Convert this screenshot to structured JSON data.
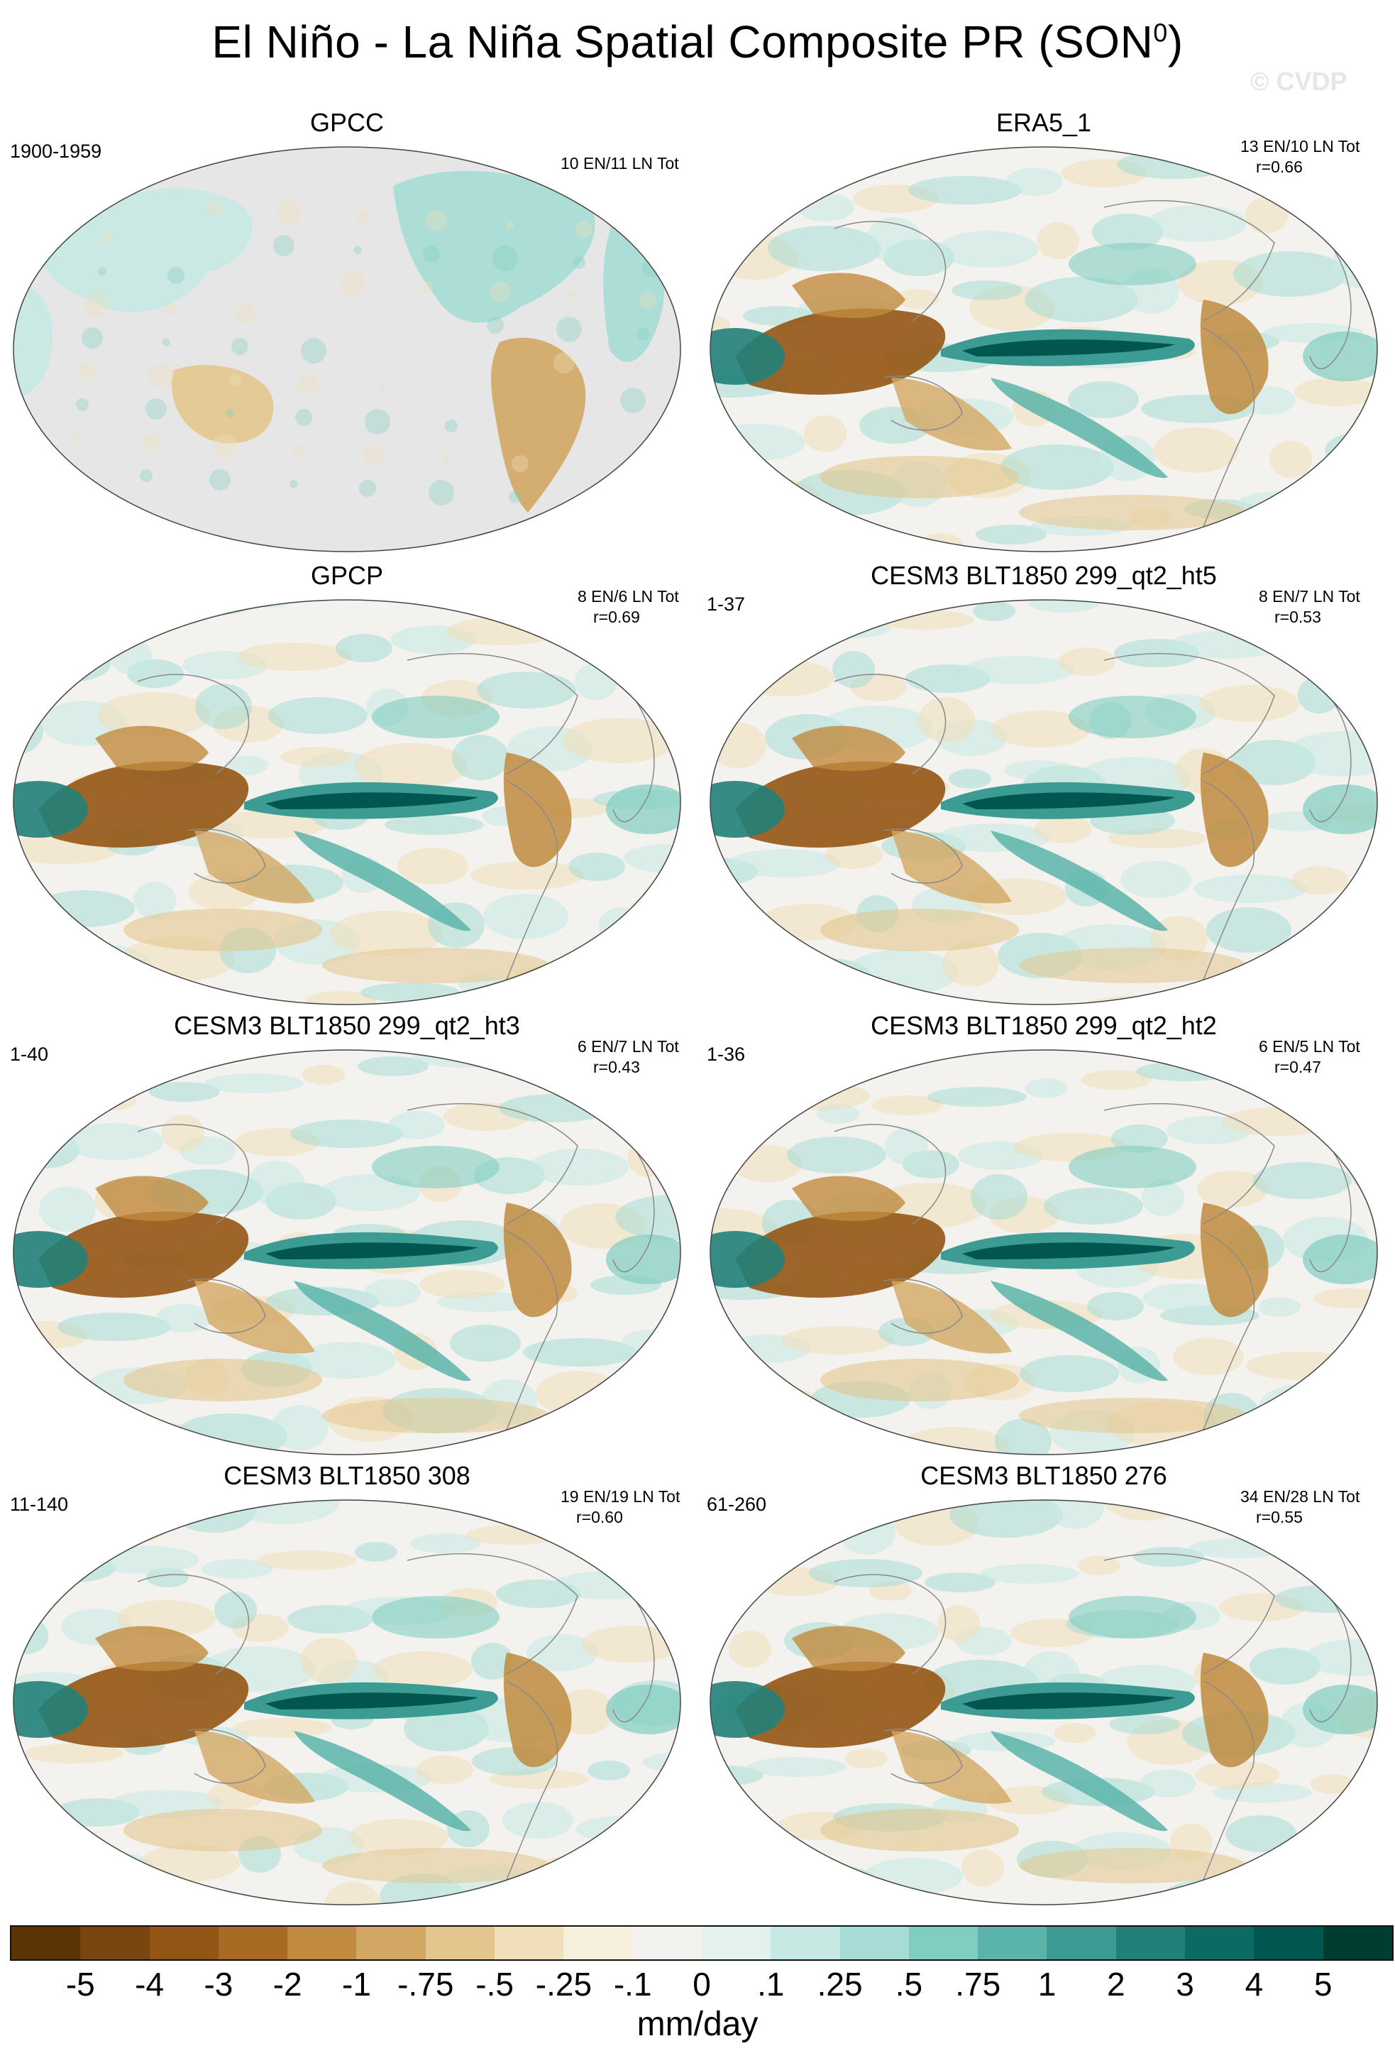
{
  "title": "El Niño - La Niña Spatial Composite PR (SON",
  "title_sup": "0",
  "title_end": ")",
  "watermark": "© CVDP",
  "panels": [
    {
      "title": "GPCC",
      "years": "1900-1959",
      "stats1": "10 EN/11 LN Tot",
      "stats2": "",
      "kind": "land"
    },
    {
      "title": "ERA5_1",
      "years": "",
      "stats1": "13 EN/10 LN Tot",
      "stats2": "r=0.66",
      "kind": "full"
    },
    {
      "title": "GPCP",
      "years": "",
      "stats1": "8 EN/6 LN Tot",
      "stats2": "r=0.69",
      "kind": "full"
    },
    {
      "title": "CESM3 BLT1850 299_qt2_ht5",
      "years": "1-37",
      "stats1": "8 EN/7 LN Tot",
      "stats2": "r=0.53",
      "kind": "full"
    },
    {
      "title": "CESM3 BLT1850 299_qt2_ht3",
      "years": "1-40",
      "stats1": "6 EN/7 LN Tot",
      "stats2": "r=0.43",
      "kind": "full"
    },
    {
      "title": "CESM3 BLT1850 299_qt2_ht2",
      "years": "1-36",
      "stats1": "6 EN/5 LN Tot",
      "stats2": "r=0.47",
      "kind": "full"
    },
    {
      "title": "CESM3 BLT1850 308",
      "years": "11-140",
      "stats1": "19 EN/19 LN Tot",
      "stats2": "r=0.60",
      "kind": "full"
    },
    {
      "title": "CESM3 BLT1850 276",
      "years": "61-260",
      "stats1": "34 EN/28 LN Tot",
      "stats2": "r=0.55",
      "kind": "full"
    }
  ],
  "colorbar": {
    "colors": [
      "#5b3408",
      "#7a4610",
      "#935513",
      "#a86a22",
      "#c08b3e",
      "#d2a763",
      "#e3c68e",
      "#f0dfb8",
      "#f6efdc",
      "#f4f2ee",
      "#e3f2ef",
      "#c7e9e4",
      "#a6dcd5",
      "#80cdc1",
      "#5ab4a9",
      "#3c9c94",
      "#218179",
      "#0b6b62",
      "#01574f",
      "#003c30"
    ],
    "labels": [
      "-5",
      "-4",
      "-3",
      "-2",
      "-1",
      "-.75",
      "-.5",
      "-.25",
      "-.1",
      "0",
      ".1",
      ".25",
      ".5",
      ".75",
      "1",
      "2",
      "3",
      "4",
      "5"
    ],
    "units": "mm/day"
  }
}
